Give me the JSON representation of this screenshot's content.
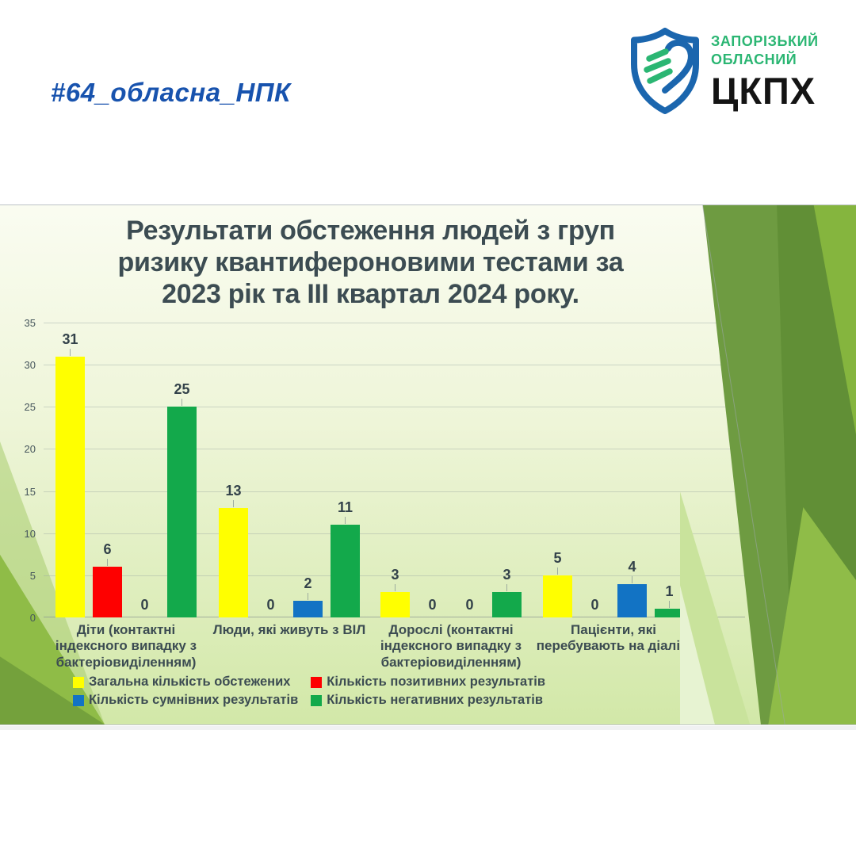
{
  "header": {
    "hashtag": "#64_обласна_НПК",
    "logo": {
      "line1": "ЗАПОРІЗЬКИЙ",
      "line2": "ОБЛАСНИЙ",
      "acronym": "ЦКПХ",
      "green": "#2BB673",
      "blue": "#1B66AE"
    }
  },
  "chart_data": {
    "type": "bar",
    "title": "Результати обстеження людей з груп ризику  квантифероновими тестами за 2023 рік та ІІІ квартал 2024 року.",
    "title_lines": [
      "Результати обстеження людей з груп",
      "ризику  квантифероновими тестами за",
      "2023 рік та ІІІ квартал 2024 року."
    ],
    "categories": [
      "Діти (контактні індексного випадку з бактеріовиділенням)",
      "Люди, які живуть з ВІЛ",
      "Дорослі (контактні індексного випадку з бактеріовиділенням)",
      "Пацієнти, які перебувають на діалізі"
    ],
    "series": [
      {
        "name": "Загальна кількість обстежених",
        "color": "#FFFF00",
        "values": [
          31,
          13,
          3,
          5
        ]
      },
      {
        "name": "Кількість позитивних результатів",
        "color": "#FE0000",
        "values": [
          6,
          0,
          0,
          0
        ]
      },
      {
        "name": "Кількість сумнівних результатів",
        "color": "#1273C4",
        "values": [
          0,
          2,
          0,
          4
        ]
      },
      {
        "name": "Кількість негативних результатів",
        "color": "#13A94B",
        "values": [
          25,
          11,
          3,
          1
        ]
      }
    ],
    "yticks": [
      0,
      5,
      10,
      15,
      20,
      25,
      30,
      35
    ],
    "ylim": [
      0,
      35
    ],
    "grid": true,
    "legend_position": "bottom",
    "xlabel": "",
    "ylabel": ""
  }
}
